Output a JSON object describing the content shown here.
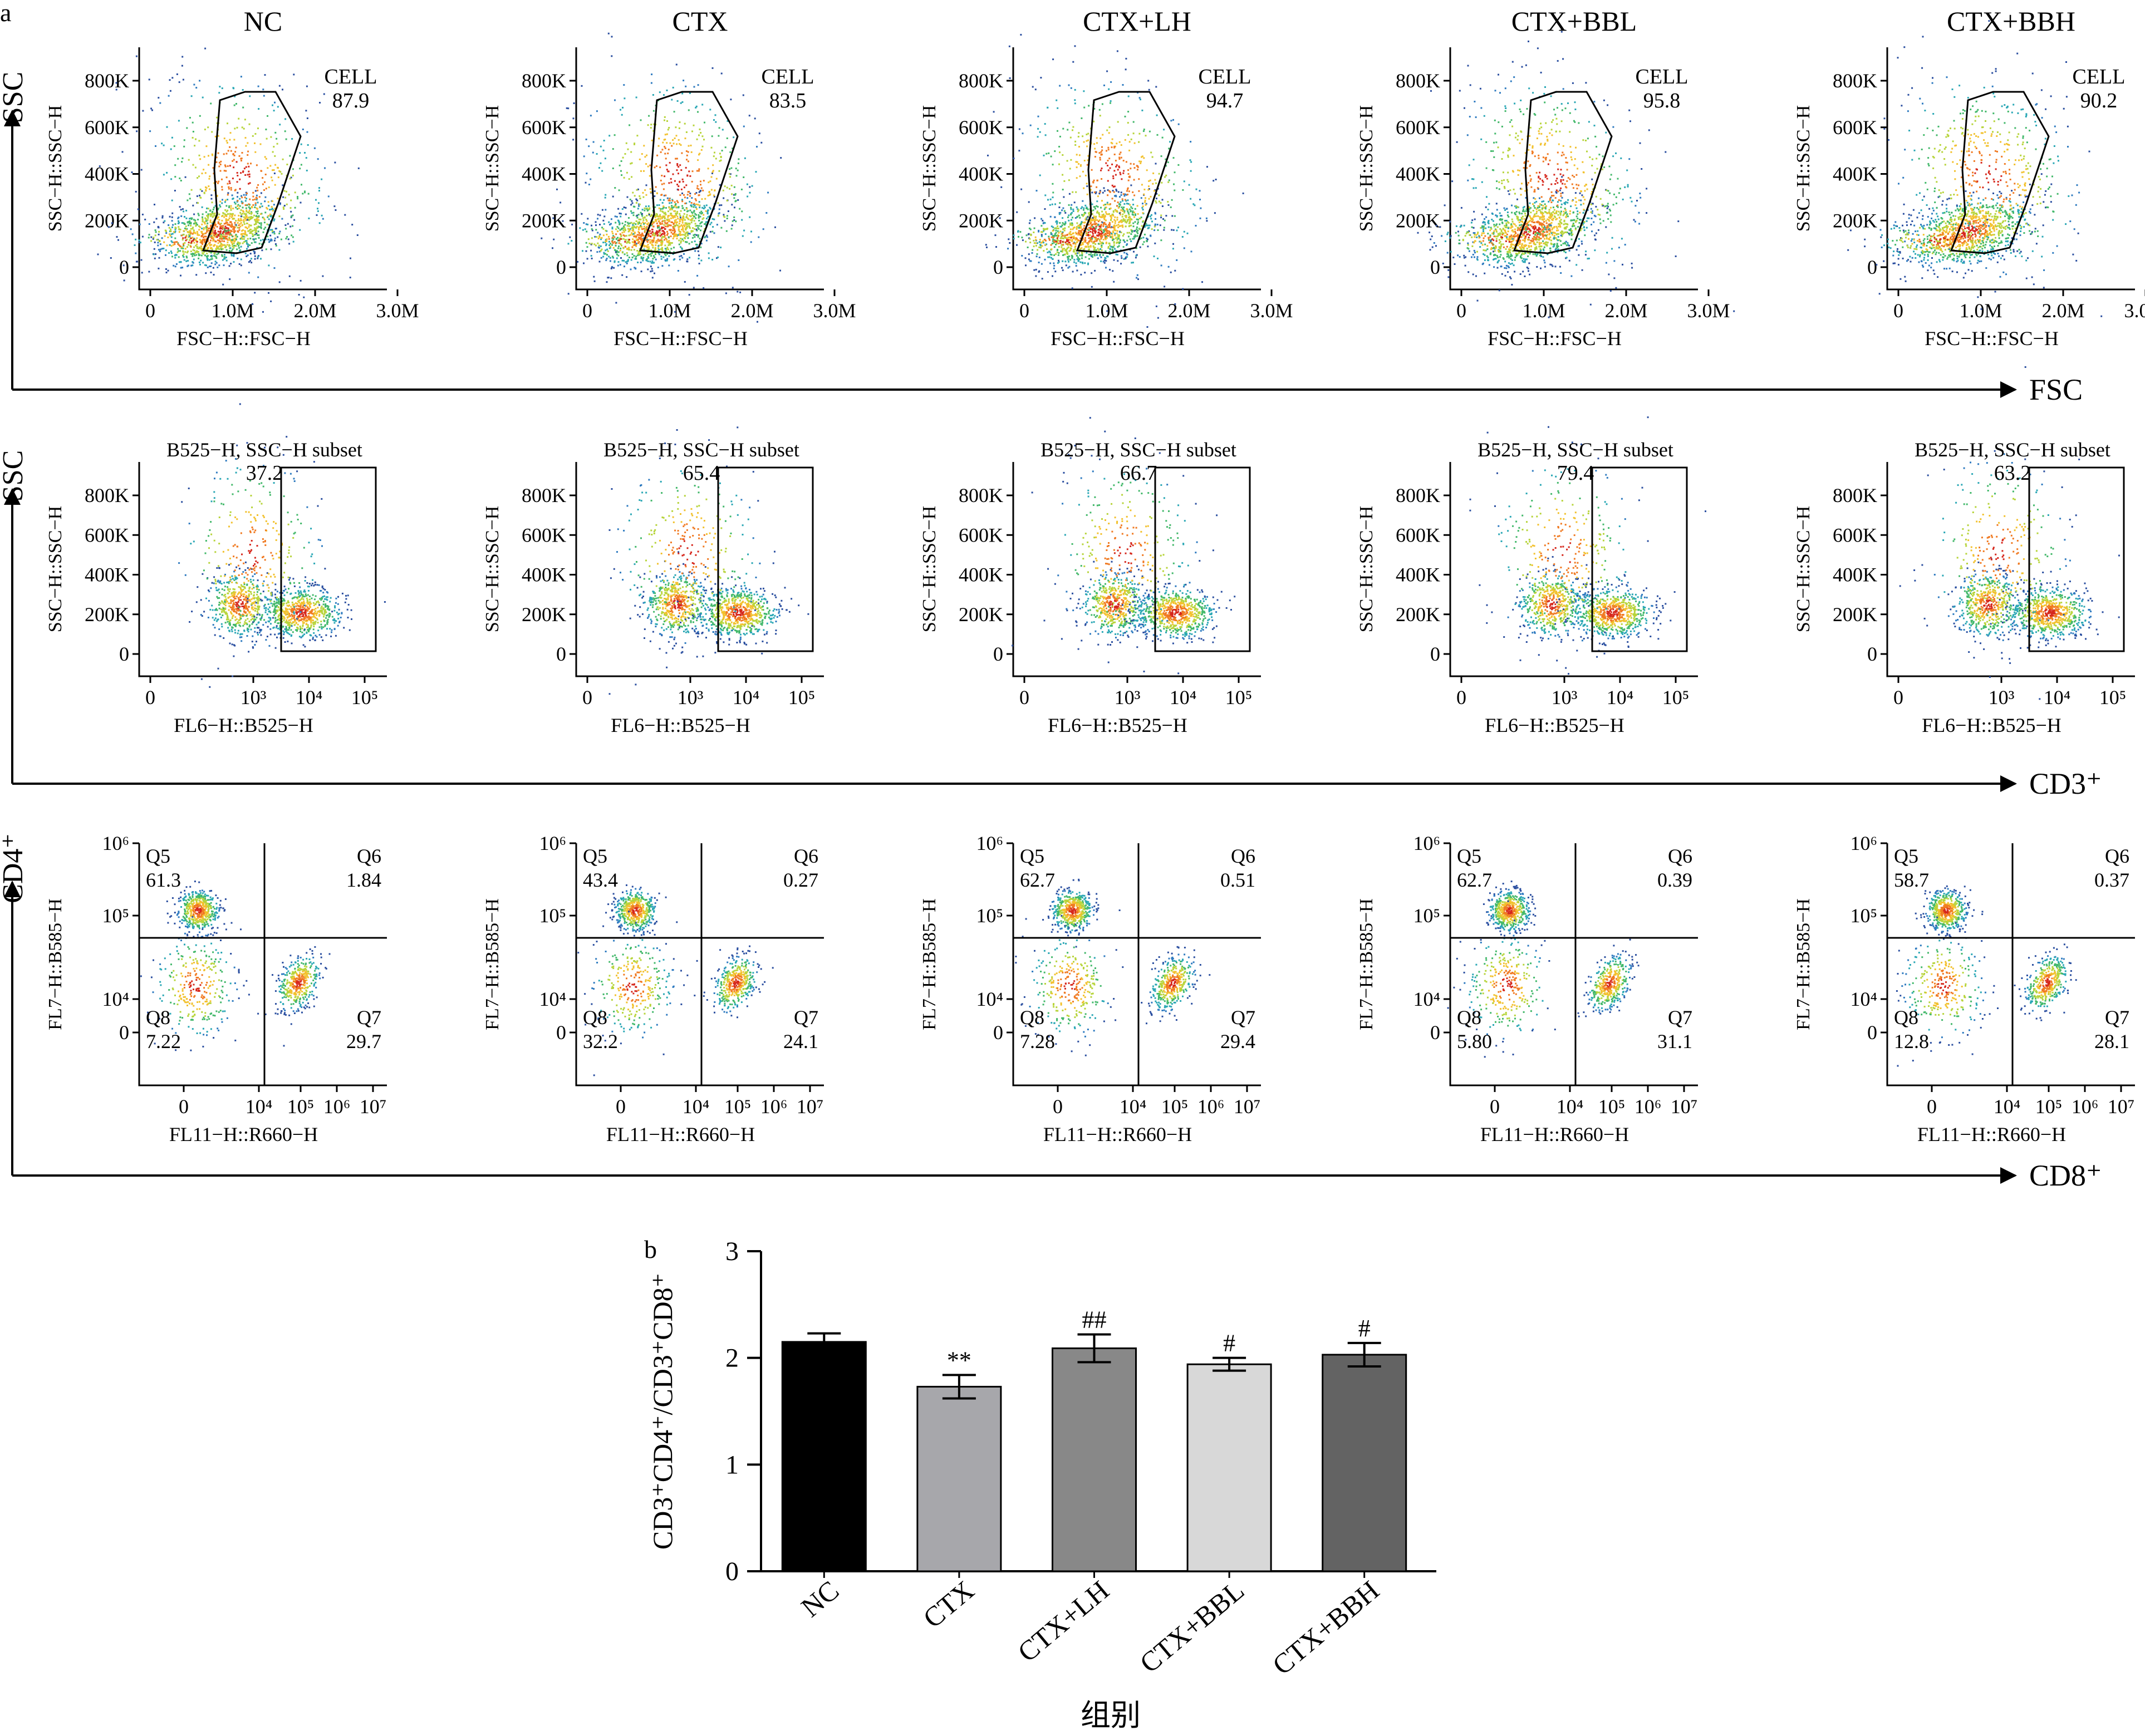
{
  "panel_a": {
    "label": "a",
    "groups": [
      "NC",
      "CTX",
      "CTX+LH",
      "CTX+BBL",
      "CTX+BBH"
    ],
    "rows": [
      {
        "id": "scatter",
        "row_axis_y": "SSC",
        "row_axis_x": "FSC",
        "plot_ylabel": "SSC−H::SSC−H",
        "plot_xlabel": "FSC−H::FSC−H",
        "yticks": [
          "800K",
          "600K",
          "400K",
          "200K",
          "0"
        ],
        "xticks": [
          "0",
          "1.0M",
          "2.0M",
          "3.0M"
        ],
        "gate_name": "CELL",
        "gate_values": [
          "87.9",
          "83.5",
          "94.7",
          "95.8",
          "90.2"
        ]
      },
      {
        "id": "cd3",
        "row_axis_y": "SSC",
        "row_axis_x": "CD3⁺",
        "plot_ylabel": "SSC−H::SSC−H",
        "plot_xlabel": "FL6−H::B525−H",
        "yticks": [
          "800K",
          "600K",
          "400K",
          "200K",
          "0"
        ],
        "xticks": [
          "0",
          "10³",
          "10⁴",
          "10⁵"
        ],
        "gate_name": "B525−H, SSC−H subset",
        "gate_values": [
          "37.2",
          "65.4",
          "66.7",
          "79.4",
          "63.2"
        ]
      },
      {
        "id": "cd4cd8",
        "row_axis_y": "CD4⁺",
        "row_axis_x": "CD8⁺",
        "plot_ylabel": "FL7−H::B585−H",
        "plot_xlabel": "FL11−H::R660−H",
        "yticks": [
          "10⁶",
          "10⁵",
          "10⁴",
          "0"
        ],
        "xticks": [
          "0",
          "10⁴",
          "10⁵",
          "10⁶",
          "10⁷"
        ],
        "quadrant_names": [
          "Q5",
          "Q6",
          "Q8",
          "Q7"
        ],
        "quadrants": [
          {
            "Q5": "61.3",
            "Q6": "1.84",
            "Q8": "7.22",
            "Q7": "29.7"
          },
          {
            "Q5": "43.4",
            "Q6": "0.27",
            "Q8": "32.2",
            "Q7": "24.1"
          },
          {
            "Q5": "62.7",
            "Q6": "0.51",
            "Q8": "7.28",
            "Q7": "29.4"
          },
          {
            "Q5": "62.7",
            "Q6": "0.39",
            "Q8": "5.80",
            "Q7": "31.1"
          },
          {
            "Q5": "58.7",
            "Q6": "0.37",
            "Q8": "12.8",
            "Q7": "28.1"
          }
        ]
      }
    ]
  },
  "chart_data": {
    "type": "bar",
    "panel_label": "b",
    "categories": [
      "NC",
      "CTX",
      "CTX+LH",
      "CTX+BBL",
      "CTX+BBH"
    ],
    "values": [
      2.15,
      1.73,
      2.09,
      1.94,
      2.03
    ],
    "errors": [
      0.08,
      0.11,
      0.13,
      0.06,
      0.11
    ],
    "annotations": [
      "",
      "**",
      "##",
      "#",
      "#"
    ],
    "colors": [
      "#000000",
      "#a7a7ab",
      "#888888",
      "#d8d8d8",
      "#636363"
    ],
    "xlabel": "组别",
    "ylabel": "CD3⁺CD4⁺/CD3⁺CD8⁺",
    "ylim": [
      0,
      3
    ],
    "yticks": [
      "0",
      "1",
      "2",
      "3"
    ]
  }
}
